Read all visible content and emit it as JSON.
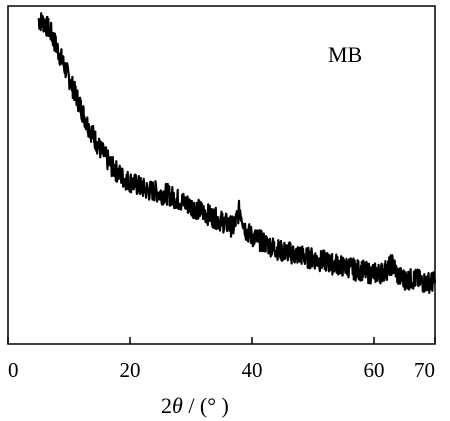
{
  "chart_data": {
    "type": "line",
    "xlabel_prefix": "2",
    "xlabel_theta": "θ",
    "xlabel_suffix": " / (°   )",
    "ylabel": "",
    "xlim": [
      0,
      70
    ],
    "x_ticks": [
      "0",
      "20",
      "40",
      "60",
      "70"
    ],
    "x_tick_values": [
      0,
      20,
      40,
      60,
      70
    ],
    "y_ticks_labeled": false,
    "grid": false,
    "legend": "top-right",
    "series": [
      {
        "name": "MB",
        "color": "#000000",
        "x": [
          5,
          6,
          7,
          8,
          9,
          10,
          11,
          12,
          13,
          14,
          15,
          16,
          17,
          18,
          19,
          20,
          21,
          22,
          23,
          24,
          25,
          26,
          27,
          28,
          29,
          30,
          31,
          32,
          33,
          34,
          35,
          36,
          37,
          38,
          39,
          40,
          41,
          42,
          43,
          44,
          45,
          46,
          47,
          48,
          49,
          50,
          51,
          52,
          53,
          54,
          55,
          56,
          57,
          58,
          59,
          60,
          61,
          62,
          63,
          64,
          65,
          66,
          67,
          68,
          69,
          70
        ],
        "y": [
          100,
          99,
          96,
          91,
          86,
          81,
          76,
          71,
          66,
          62,
          58,
          55,
          52,
          50,
          48,
          47,
          46,
          45,
          44,
          44,
          43,
          43,
          42,
          41,
          40,
          39,
          38,
          37,
          36,
          35,
          34,
          33,
          32,
          38,
          31,
          29,
          28,
          27,
          26,
          25,
          24,
          24,
          23,
          23,
          22,
          22,
          21,
          21,
          20,
          20,
          19,
          19,
          18,
          18,
          17,
          17,
          17,
          18,
          20,
          16,
          15,
          15,
          15,
          14,
          14,
          14
        ]
      }
    ]
  }
}
